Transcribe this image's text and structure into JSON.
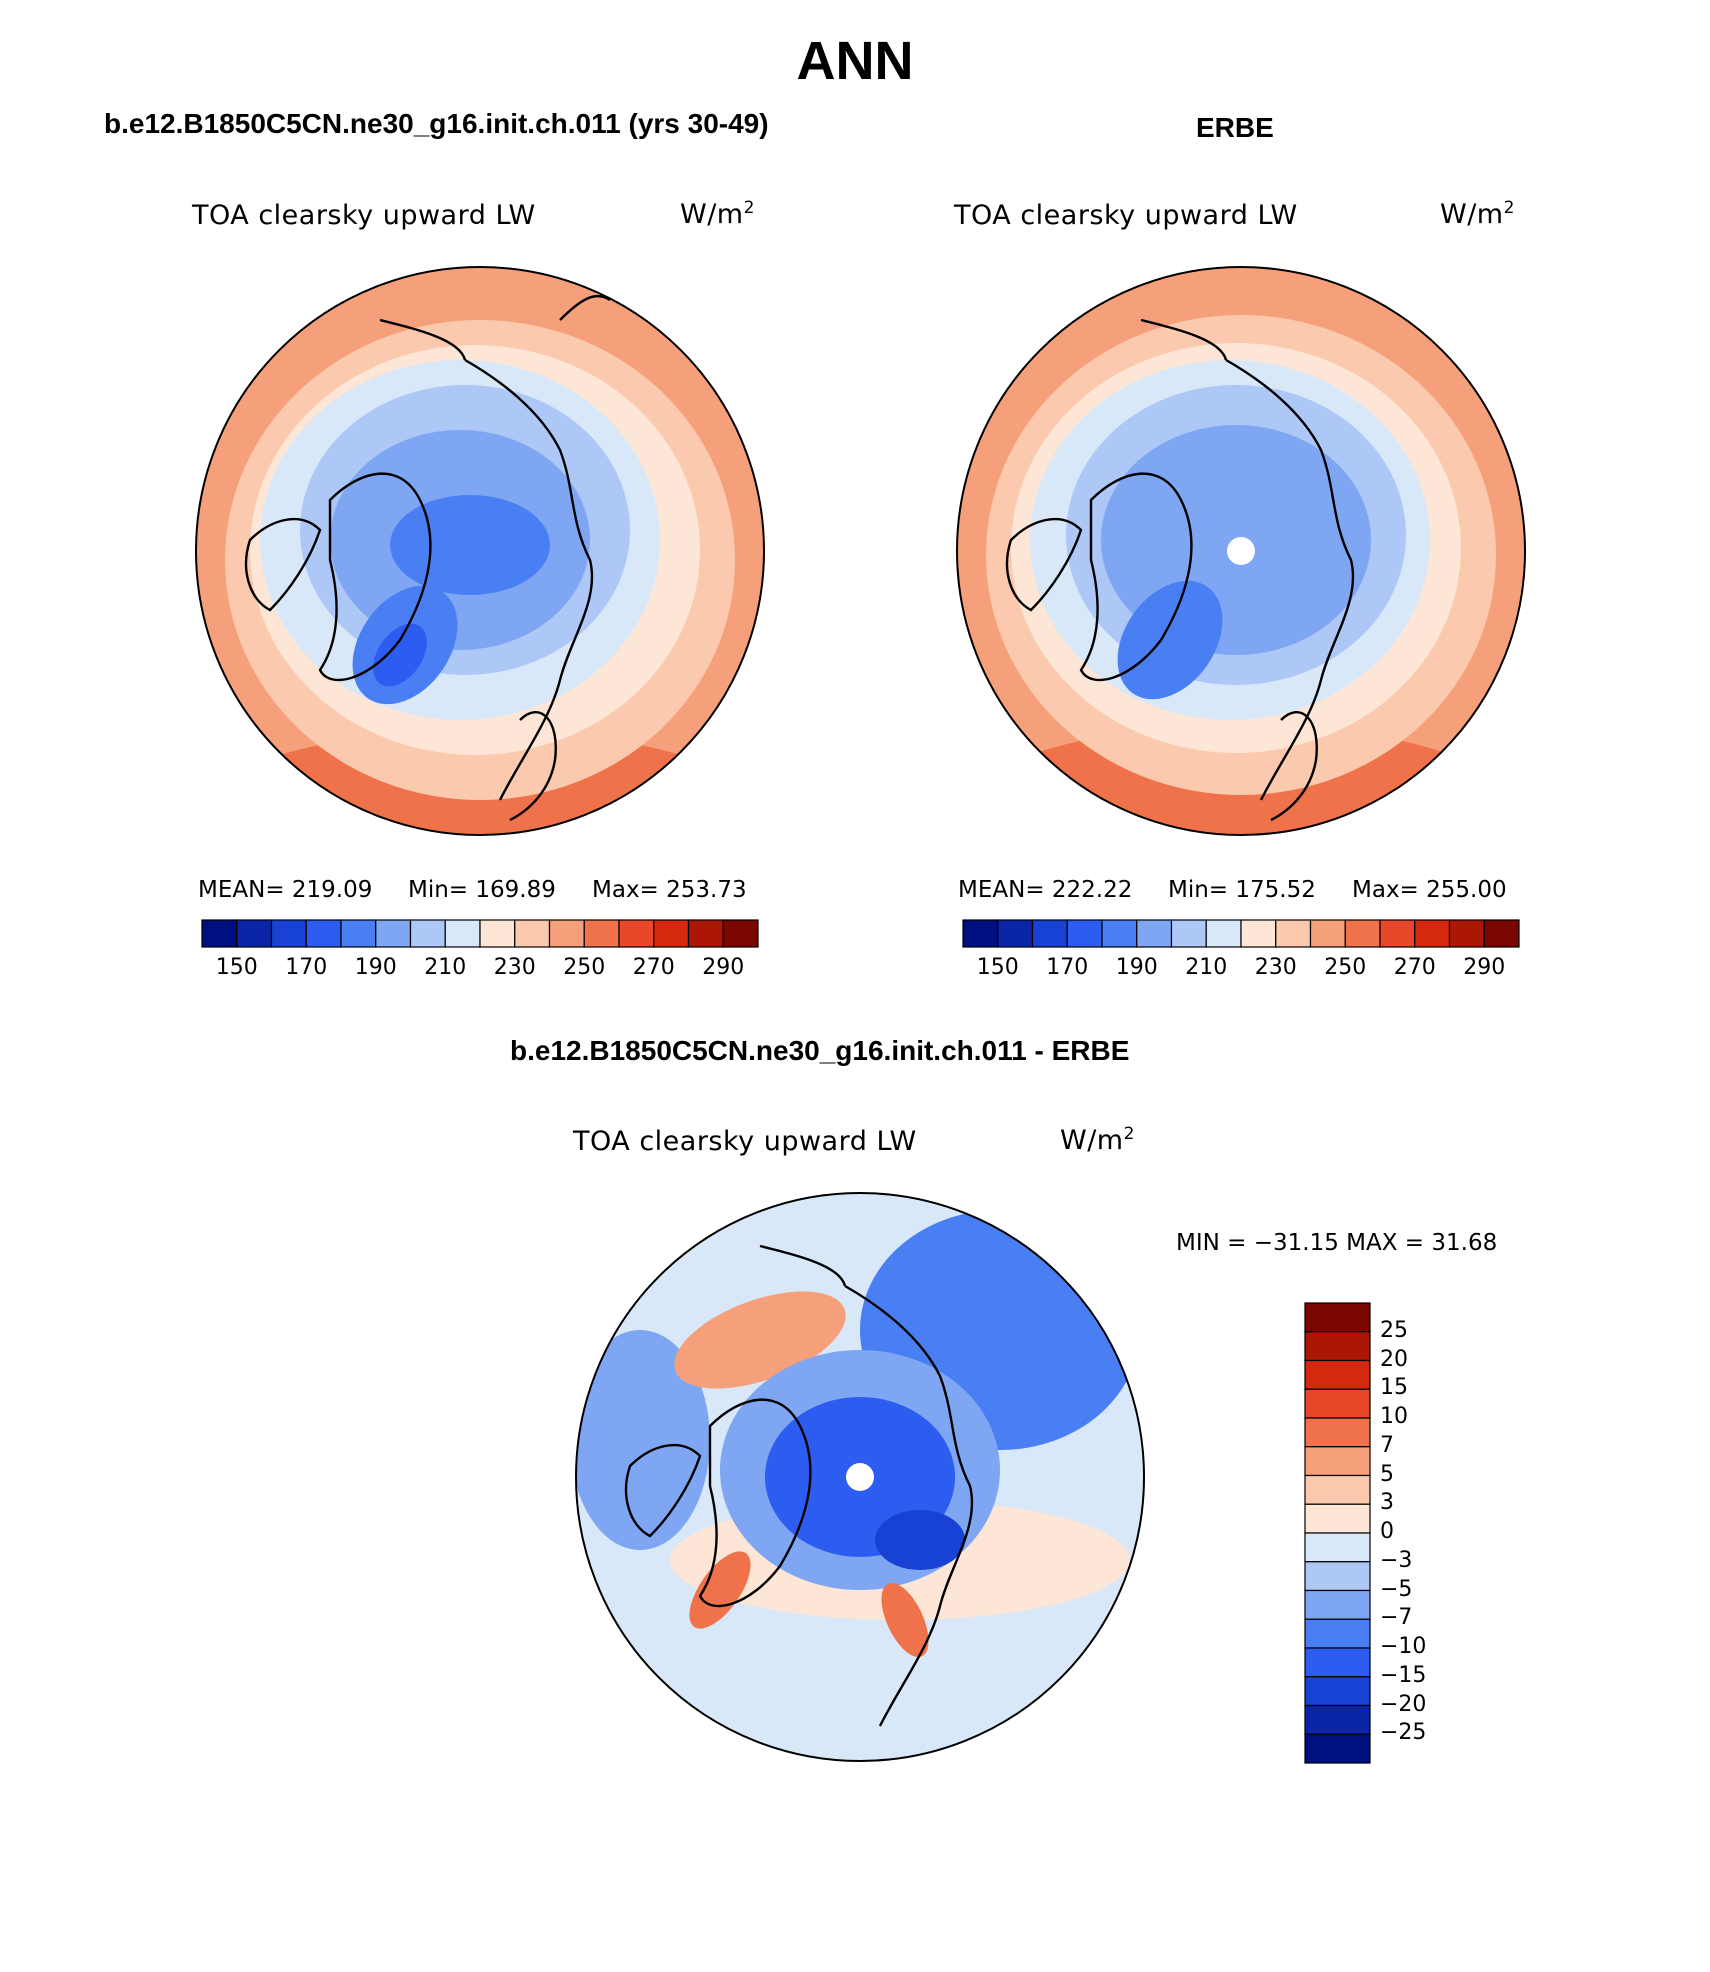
{
  "title": "ANN",
  "panels": [
    {
      "header": "b.e12.B1850C5CN.ne30_g16.init.ch.011 (yrs 30-49)",
      "variable": "TOA clearsky upward LW",
      "units_base": "W/m",
      "units_exp": "2",
      "stats": {
        "mean_text": "MEAN= 219.09",
        "min_text": "Min= 169.89",
        "max_text": "Max= 253.73"
      }
    },
    {
      "header": "ERBE",
      "variable": "TOA clearsky upward LW",
      "units_base": "W/m",
      "units_exp": "2",
      "stats": {
        "mean_text": "MEAN= 222.22",
        "min_text": "Min= 175.52",
        "max_text": "Max= 255.00"
      }
    },
    {
      "header": "b.e12.B1850C5CN.ne30_g16.init.ch.011 - ERBE",
      "variable": "TOA clearsky upward LW",
      "units_base": "W/m",
      "units_exp": "2",
      "minmax_text": "MIN = −31.15 MAX =  31.68"
    }
  ],
  "abs_colorbar": {
    "colors": [
      "#000f7f",
      "#0a25a8",
      "#1842d4",
      "#2c5df0",
      "#4a7ff4",
      "#7ea6f2",
      "#adc7f6",
      "#d9e8f9",
      "#fde6d6",
      "#fbc9ad",
      "#f6a07b",
      "#f0724a",
      "#e9472a",
      "#d4280f",
      "#ac1705",
      "#7a0600"
    ],
    "tick_labels": [
      "150",
      "170",
      "190",
      "210",
      "230",
      "250",
      "270",
      "290"
    ]
  },
  "diff_colorbar": {
    "colors": [
      "#7a0600",
      "#ac1705",
      "#d4280f",
      "#e9472a",
      "#f0724a",
      "#f6a07b",
      "#fbc9ad",
      "#fde6d6",
      "#d9e8f9",
      "#adc7f6",
      "#7ea6f2",
      "#4a7ff4",
      "#2c5df0",
      "#1842d4",
      "#0a25a8",
      "#000f7f"
    ],
    "tick_labels": [
      "25",
      "20",
      "15",
      "10",
      "7",
      "5",
      "3",
      "0",
      "−3",
      "−5",
      "−7",
      "−10",
      "−15",
      "−20",
      "−25"
    ]
  },
  "map_colors": {
    "outer": "#f6a07b",
    "edge": "#f0724a",
    "ring": "#fbc9ad",
    "inner_ring": "#fde6d6",
    "pale": "#d9e8f9",
    "blue_light": "#adc7f6",
    "blue_mid": "#7ea6f2",
    "blue_dark": "#4a7ff4",
    "blue_deep": "#2c5df0",
    "blue_core": "#1842d4",
    "coast": "#000000",
    "pole": "#ffffff"
  }
}
